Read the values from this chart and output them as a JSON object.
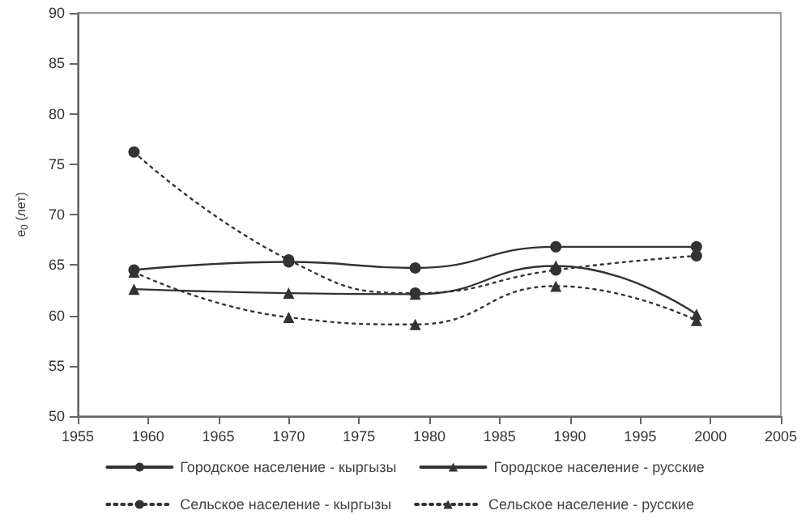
{
  "chart_data": {
    "type": "line",
    "ylabel": "e$_{0}$ (лет)",
    "x": [
      1959,
      1970,
      1979,
      1989,
      1999
    ],
    "xlim": [
      1955,
      2005
    ],
    "xticks": [
      1955,
      1960,
      1965,
      1970,
      1975,
      1980,
      1985,
      1990,
      1995,
      2000,
      2005
    ],
    "ylim": [
      50,
      90
    ],
    "yticks": [
      50,
      55,
      60,
      65,
      70,
      75,
      80,
      85,
      90
    ],
    "grid": false,
    "legend": "bottom",
    "series": [
      {
        "name": "Городское население - кыргызы",
        "color": "#333333",
        "marker": "circle",
        "line_style": "solid",
        "values": [
          64.5,
          65.3,
          64.7,
          66.8,
          66.8
        ]
      },
      {
        "name": "Городское население - русские",
        "color": "#333333",
        "marker": "triangle",
        "line_style": "solid",
        "values": [
          62.6,
          62.2,
          62.1,
          64.9,
          60.1
        ]
      },
      {
        "name": "Сельское население - кыргызы",
        "color": "#333333",
        "marker": "circle",
        "line_style": "dotted",
        "values": [
          76.2,
          65.5,
          62.2,
          64.5,
          65.9
        ]
      },
      {
        "name": "Сельское население - русские",
        "color": "#333333",
        "marker": "triangle",
        "line_style": "dotted",
        "values": [
          64.3,
          59.8,
          59.1,
          62.9,
          59.5
        ]
      }
    ]
  }
}
